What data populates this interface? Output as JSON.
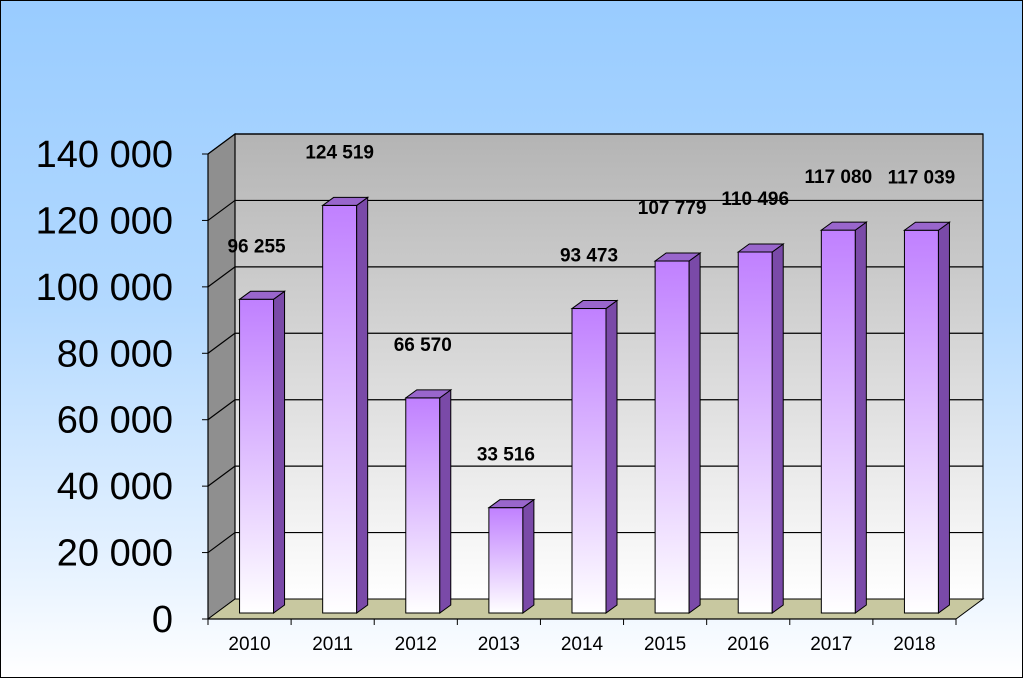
{
  "chart_data": {
    "type": "bar",
    "title": "",
    "xlabel": "",
    "ylabel": "",
    "categories": [
      "2010",
      "2011",
      "2012",
      "2013",
      "2014",
      "2015",
      "2016",
      "2017",
      "2018"
    ],
    "values": [
      96255,
      124519,
      66570,
      33516,
      93473,
      107779,
      110496,
      117080,
      117039
    ],
    "value_labels": [
      "96 255",
      "124 519",
      "66 570",
      "33 516",
      "93 473",
      "107 779",
      "110 496",
      "117 080",
      "117 039"
    ],
    "y_ticks": [
      0,
      20000,
      40000,
      60000,
      80000,
      100000,
      120000,
      140000
    ],
    "y_tick_labels": [
      "0",
      "20 000",
      "40 000",
      "60 000",
      "80 000",
      "100 000",
      "120 000",
      "140 000"
    ],
    "ylim": [
      0,
      140000
    ],
    "grid": true,
    "legend": false,
    "style": "3d-column",
    "colors": {
      "bar_top": "#c080ff",
      "bar_bottom": "#ffffff",
      "bar_side": "#7a4aa8",
      "bar_cap": "#9966cc",
      "wall": "#c0c0c0",
      "side_wall": "#8f8f8f",
      "floor": "#c8c8a0",
      "background_top": "#99ccff",
      "background_bottom": "#ffffff"
    }
  }
}
